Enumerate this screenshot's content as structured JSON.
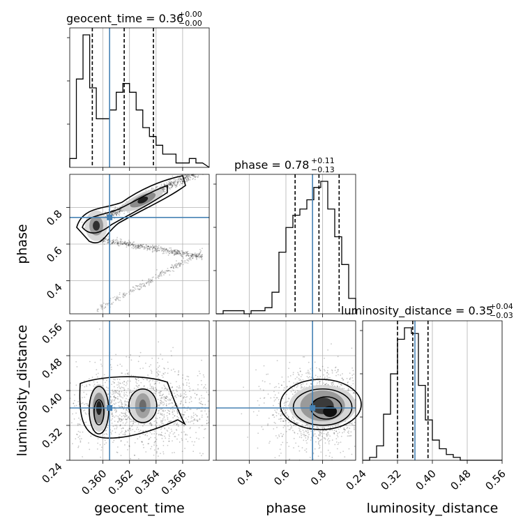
{
  "chart_data": {
    "type": "corner",
    "parameters": [
      "geocent_time",
      "phase",
      "luminosity_distance"
    ],
    "titles": [
      {
        "param": "geocent_time",
        "label": "geocent_time = 0.36",
        "plus": "+0.00",
        "minus": "−0.00"
      },
      {
        "param": "phase",
        "label": "phase = 0.78",
        "plus": "+0.11",
        "minus": "−0.13"
      },
      {
        "param": "luminosity_distance",
        "label": "luminosity_distance = 0.35",
        "plus": "+0.04",
        "minus": "−0.03"
      }
    ],
    "ranges": {
      "geocent_time": [
        0.3575,
        0.368
      ],
      "phase": [
        0.22,
        0.98
      ],
      "luminosity_distance": [
        0.24,
        0.56
      ]
    },
    "ticks": {
      "geocent_time": [
        "0.360",
        "0.362",
        "0.364",
        "0.366"
      ],
      "phase": [
        "0.4",
        "0.6",
        "0.8"
      ],
      "luminosity_distance": [
        "0.24",
        "0.32",
        "0.40",
        "0.48",
        "0.56"
      ]
    },
    "truths": {
      "geocent_time": 0.3605,
      "phase": 0.745,
      "luminosity_distance": 0.36
    },
    "quantiles": {
      "geocent_time": [
        0.3592,
        0.3616,
        0.3638
      ],
      "phase": [
        0.65,
        0.78,
        0.89
      ],
      "luminosity_distance": [
        0.32,
        0.355,
        0.39
      ]
    },
    "histograms": {
      "geocent_time": {
        "edges_start": 0.3575,
        "bin_width": 0.0005,
        "counts": [
          2,
          20,
          30,
          18,
          11,
          11,
          13,
          17,
          19,
          17,
          13,
          9,
          7,
          5,
          3,
          3,
          1,
          1,
          2,
          1
        ]
      },
      "phase": {
        "edges_start": 0.22,
        "bin_width": 0.038,
        "counts": [
          0,
          1,
          1,
          1,
          0,
          1,
          1,
          2,
          7,
          20,
          28,
          32,
          34,
          37,
          41,
          43,
          34,
          25,
          16,
          5
        ]
      },
      "luminosity_distance": {
        "edges_start": 0.24,
        "bin_width": 0.016,
        "counts": [
          0,
          1,
          5,
          16,
          30,
          42,
          46,
          44,
          26,
          14,
          7,
          4,
          2,
          1,
          0,
          0,
          0,
          0,
          0,
          0
        ]
      }
    },
    "grid": true
  }
}
